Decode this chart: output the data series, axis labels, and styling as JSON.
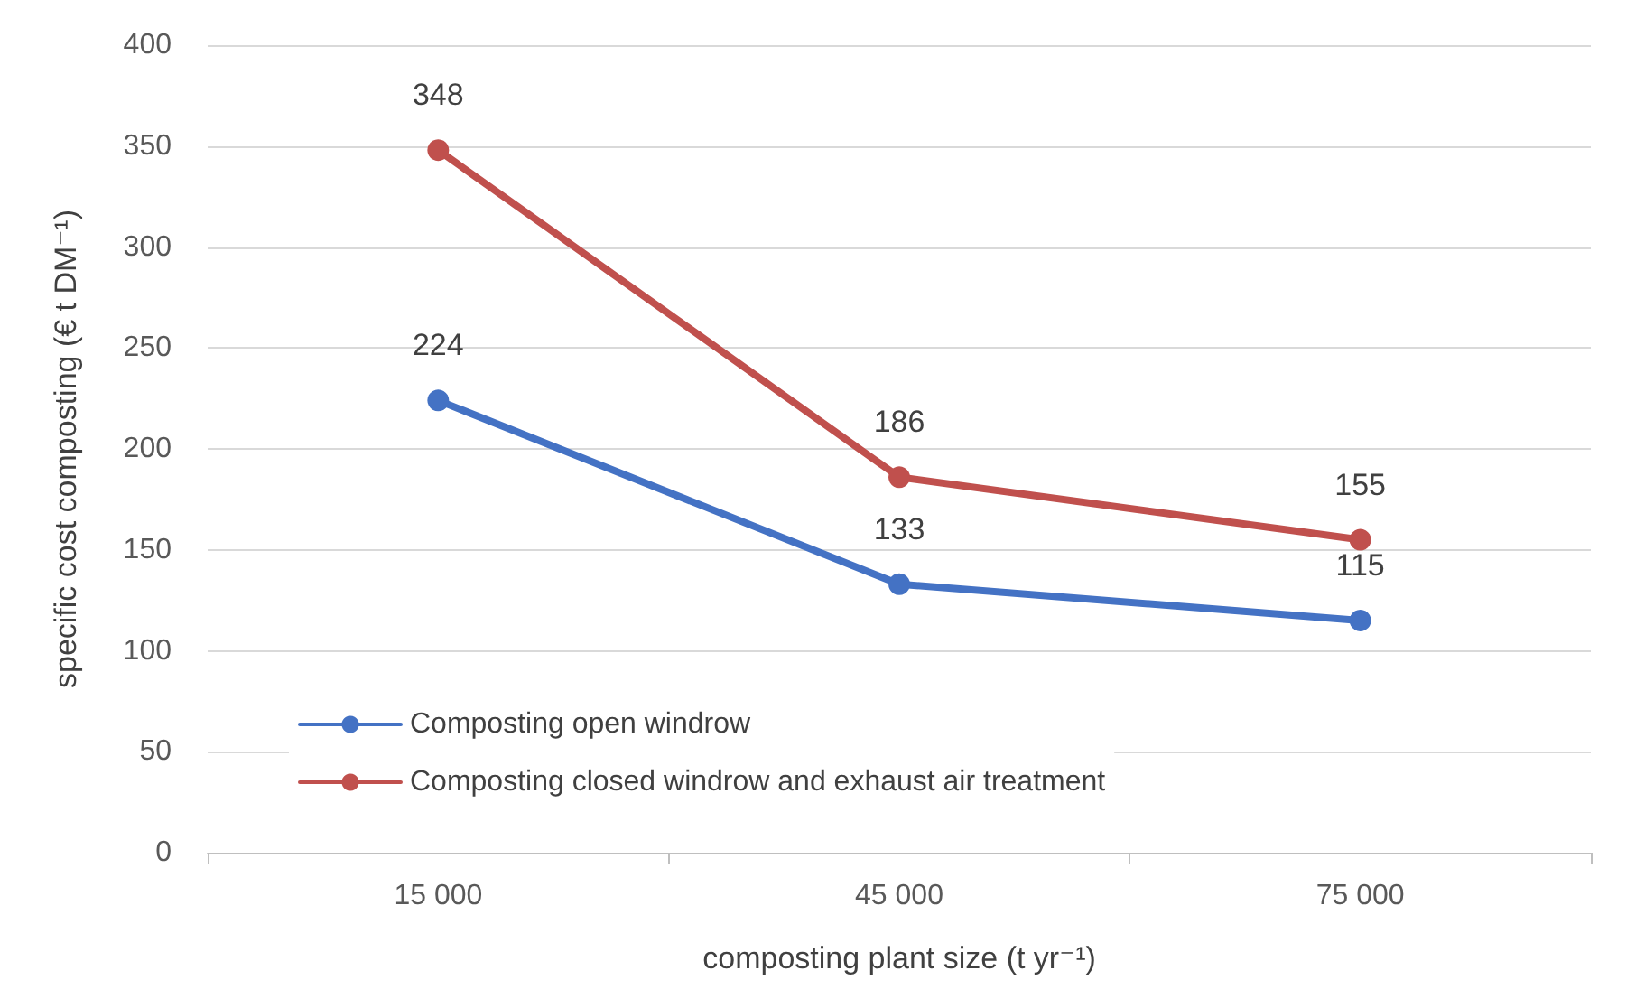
{
  "chart_data": {
    "type": "line",
    "xlabel": "composting plant size (t yr⁻¹)",
    "ylabel": "specific cost composting (€ t DM⁻¹)",
    "categories": [
      "15 000",
      "45 000",
      "75 000"
    ],
    "series": [
      {
        "name": "Composting open windrow",
        "color": "#4472c4",
        "values": [
          224,
          133,
          115
        ]
      },
      {
        "name": "Composting closed windrow and exhaust air treatment",
        "color": "#c0504d",
        "values": [
          348,
          186,
          155
        ]
      }
    ],
    "ylim": [
      0,
      400
    ],
    "yticks": [
      0,
      50,
      100,
      150,
      200,
      250,
      300,
      350,
      400
    ],
    "grid": "y",
    "legend": "bottom left",
    "marker": "circle",
    "line_style": "solid",
    "data_labels": true
  }
}
